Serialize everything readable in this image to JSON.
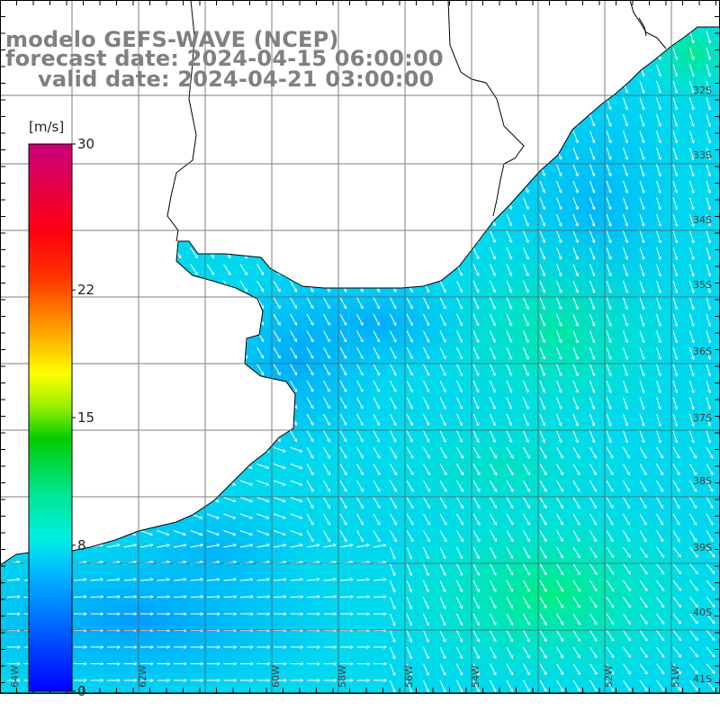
{
  "title": {
    "line1": "modelo GEFS-WAVE (NCEP)",
    "line2": "forecast date: 2024-04-15 06:00:00",
    "line3": "valid date: 2024-04-21 03:00:00"
  },
  "colorbar": {
    "unit": "[m/s]",
    "ticks": [
      "30",
      "22",
      "15",
      "8",
      "0"
    ],
    "tick_values": [
      30,
      22,
      15,
      8,
      0
    ],
    "colors": [
      "#0000ff",
      "#0064ff",
      "#00b4ff",
      "#00e6e6",
      "#00e678",
      "#00c800",
      "#78e600",
      "#ffff00",
      "#ff9600",
      "#ff0000",
      "#e6004b",
      "#c80078"
    ]
  },
  "lat_labels": [
    "32S",
    "33S",
    "34S",
    "35S",
    "36S",
    "37S",
    "38S",
    "39S",
    "40S",
    "41S"
  ],
  "lon_labels": [
    "64W",
    "62W",
    "60W",
    "58W",
    "56W",
    "54W",
    "52W",
    "51W"
  ],
  "field": {
    "variable": "wind speed",
    "range_ms": [
      0,
      30
    ]
  }
}
